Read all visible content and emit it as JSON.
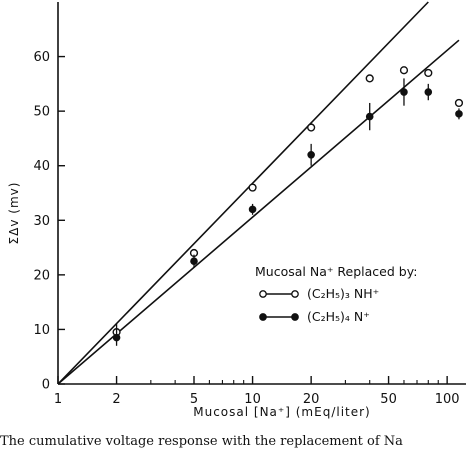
{
  "chart_data": {
    "type": "scatter",
    "xlabel": "Mucosal [Na⁺] (mEq/liter)",
    "ylabel": "ΣΔv (mv)",
    "x_scale": "log",
    "xlim": [
      1,
      125
    ],
    "ylim": [
      0,
      70
    ],
    "x_ticks": [
      "1",
      "2",
      "5",
      "10",
      "20",
      "50",
      "100"
    ],
    "x_tick_values": [
      1,
      2,
      5,
      10,
      20,
      50,
      100
    ],
    "y_ticks": [
      "0",
      "10",
      "20",
      "30",
      "40",
      "50",
      "60"
    ],
    "y_tick_values": [
      0,
      10,
      20,
      30,
      40,
      50,
      60
    ],
    "legend": {
      "title": "Mucosal Na⁺ Replaced by:",
      "placement": "right",
      "entries": [
        {
          "label": "(C₂H₅)₃ NH⁺",
          "marker": "open-circle"
        },
        {
          "label": "(C₂H₅)₄ N⁺",
          "marker": "filled-circle"
        }
      ]
    },
    "series": [
      {
        "marker": "open-circle",
        "points": [
          {
            "x": 2,
            "y": 9.5,
            "err": 1.5
          },
          {
            "x": 5,
            "y": 24,
            "err": 0
          },
          {
            "x": 10,
            "y": 36,
            "err": 0
          },
          {
            "x": 20,
            "y": 47,
            "err": 0
          },
          {
            "x": 40,
            "y": 56,
            "err": 0
          },
          {
            "x": 60,
            "y": 57.5,
            "err": 0
          },
          {
            "x": 80,
            "y": 57,
            "err": 0
          },
          {
            "x": 115,
            "y": 51.5,
            "err": 0
          }
        ],
        "fit_line": {
          "from": [
            1,
            0
          ],
          "to": [
            80,
            70
          ]
        }
      },
      {
        "marker": "filled-circle",
        "points": [
          {
            "x": 2,
            "y": 8.5,
            "err": 1.5
          },
          {
            "x": 5,
            "y": 22.5,
            "err": 1.2
          },
          {
            "x": 10,
            "y": 32,
            "err": 1
          },
          {
            "x": 20,
            "y": 42,
            "err": 2
          },
          {
            "x": 40,
            "y": 49,
            "err": 2.5
          },
          {
            "x": 60,
            "y": 53.5,
            "err": 2.5
          },
          {
            "x": 80,
            "y": 53.5,
            "err": 1.5
          },
          {
            "x": 115,
            "y": 49.5,
            "err": 1
          }
        ],
        "fit_line": {
          "from": [
            1,
            0
          ],
          "to": [
            115,
            63
          ]
        }
      }
    ]
  },
  "caption": "The cumulative voltage response with the replacement of Na"
}
